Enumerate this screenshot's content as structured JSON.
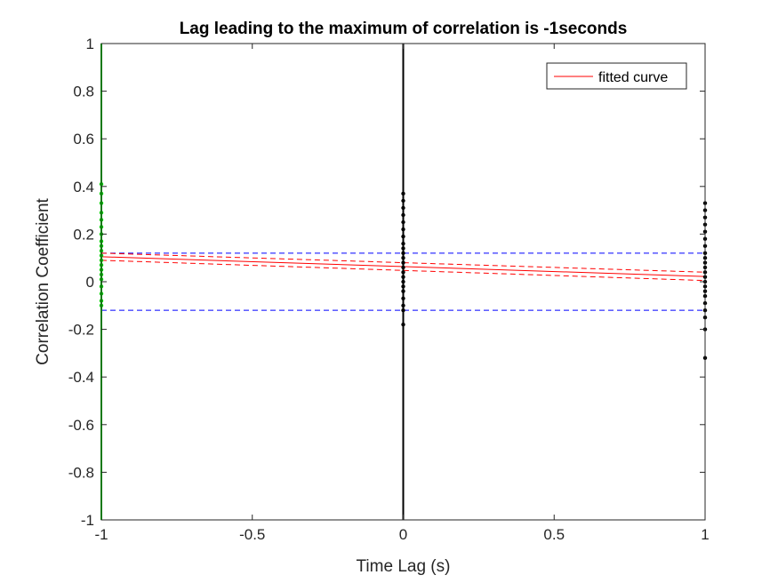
{
  "chart_data": {
    "type": "scatter",
    "title": "Lag leading to the maximum of correlation is -1seconds",
    "xlabel": "Time Lag (s)",
    "ylabel": "Correlation Coefficient",
    "xlim": [
      -1,
      1
    ],
    "ylim": [
      -1,
      1
    ],
    "x_ticks": [
      "-1",
      "-0.5",
      "0",
      "0.5",
      "1"
    ],
    "y_ticks": [
      "-1",
      "-0.8",
      "-0.6",
      "-0.4",
      "-0.2",
      "0",
      "0.2",
      "0.4",
      "0.6",
      "0.8",
      "1"
    ],
    "grid": false,
    "legend": {
      "position": "top-right",
      "entries": [
        {
          "label": "fitted curve",
          "color": "#ff0000"
        }
      ]
    },
    "max_lag_line": {
      "x": -1,
      "color": "#00cc00"
    },
    "zero_lag_line": {
      "x": 0,
      "color": "#000000"
    },
    "significance_bounds": {
      "upper": 0.12,
      "lower": -0.12,
      "color": "#0000ff"
    },
    "fitted_curve": {
      "x": [
        -1,
        1
      ],
      "y": [
        0.105,
        0.022
      ],
      "color": "#ff0000"
    },
    "confidence_band": {
      "upper": [
        0.12,
        0.04
      ],
      "lower": [
        0.09,
        0.005
      ],
      "color": "#ff0000"
    },
    "scatter_groups": [
      {
        "x": -1,
        "color": "#00cc00",
        "y": [
          0.41,
          0.37,
          0.33,
          0.29,
          0.26,
          0.23,
          0.2,
          0.17,
          0.15,
          0.13,
          0.11,
          0.09,
          0.07,
          0.05,
          0.03,
          0.01,
          -0.02,
          -0.05,
          -0.08,
          -0.1
        ]
      },
      {
        "x": 0,
        "color": "#000000",
        "y": [
          0.37,
          0.34,
          0.31,
          0.28,
          0.25,
          0.22,
          0.19,
          0.16,
          0.14,
          0.12,
          0.1,
          0.08,
          0.06,
          0.04,
          0.02,
          0.0,
          -0.02,
          -0.04,
          -0.07,
          -0.1,
          -0.12,
          -0.18
        ]
      },
      {
        "x": 1,
        "color": "#000000",
        "y": [
          0.33,
          0.3,
          0.27,
          0.24,
          0.21,
          0.18,
          0.15,
          0.12,
          0.1,
          0.08,
          0.06,
          0.04,
          0.02,
          0.0,
          -0.02,
          -0.04,
          -0.06,
          -0.09,
          -0.12,
          -0.15,
          -0.2,
          -0.32
        ]
      }
    ]
  }
}
